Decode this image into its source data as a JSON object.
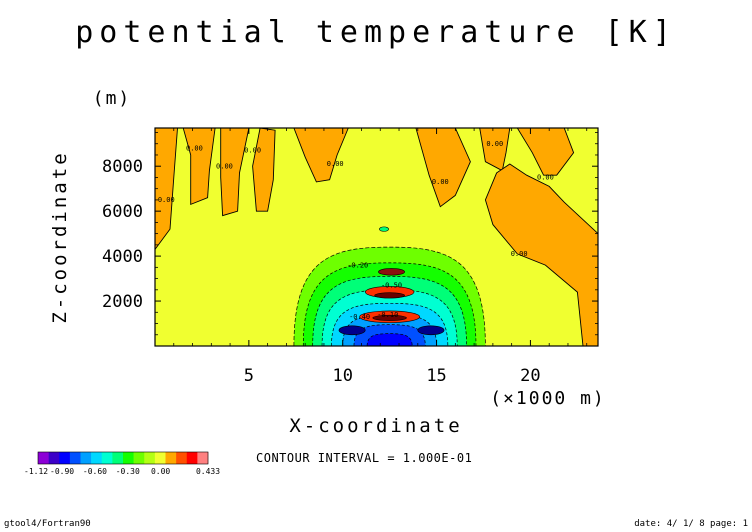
{
  "chart_data": {
    "type": "heatmap",
    "title": "potential temperature [K]",
    "xlabel": "X-coordinate",
    "ylabel": "Z-coordinate",
    "x_unit": "(×1000 m)",
    "y_unit": "(m)",
    "xlim": [
      0,
      23.6
    ],
    "ylim": [
      0,
      9700
    ],
    "xticks": [
      5,
      10,
      15,
      20
    ],
    "yticks": [
      2000,
      4000,
      6000,
      8000
    ],
    "grid": false,
    "background_level": 0.0,
    "contour_interval": "CONTOUR INTERVAL = 1.000E-01",
    "contour_labels": [
      {
        "x": 0.6,
        "z": 6400,
        "text": "0.00"
      },
      {
        "x": 2.1,
        "z": 8700,
        "text": "0.00"
      },
      {
        "x": 3.7,
        "z": 7900,
        "text": "0.00"
      },
      {
        "x": 5.2,
        "z": 8600,
        "text": "0.00"
      },
      {
        "x": 9.6,
        "z": 8000,
        "text": "0.00"
      },
      {
        "x": 15.2,
        "z": 7200,
        "text": "0.00"
      },
      {
        "x": 18.1,
        "z": 8900,
        "text": "0.00"
      },
      {
        "x": 20.8,
        "z": 7400,
        "text": "0.00"
      },
      {
        "x": 19.4,
        "z": 4000,
        "text": "0.00"
      },
      {
        "x": 10.8,
        "z": 3500,
        "text": "-0.20"
      },
      {
        "x": 12.6,
        "z": 2600,
        "text": "-0.50"
      },
      {
        "x": 12.4,
        "z": 1300,
        "text": "-0.10"
      },
      {
        "x": 10.9,
        "z": 1200,
        "text": "-0.40"
      }
    ],
    "warm_regions_value": 0.1,
    "cold_core": {
      "x_center": 12.5,
      "z_min": 0,
      "z_max": 4400,
      "min_value": -1.12
    },
    "colorbar": {
      "levels": [
        -1.12,
        -1.0,
        -0.9,
        -0.8,
        -0.7,
        -0.6,
        -0.5,
        -0.4,
        -0.3,
        -0.2,
        -0.1,
        0.0,
        0.1,
        0.2,
        0.3,
        0.4,
        0.433
      ],
      "colors": [
        "#8c00d6",
        "#3c00c8",
        "#0000ff",
        "#0050ff",
        "#00a0ff",
        "#00d8ff",
        "#00ffd2",
        "#00ff78",
        "#14ff00",
        "#6eff00",
        "#b4ff14",
        "#f0ff30",
        "#ffa800",
        "#ff5000",
        "#ff0000",
        "#ff8080"
      ],
      "tick_labels": [
        "-1.12",
        "-0.90",
        "-0.60",
        "-0.30",
        "0.00",
        "0.433"
      ]
    }
  },
  "footer": {
    "left": "gtool4/Fortran90",
    "right": "date: 4/ 1/ 8 page: 1"
  },
  "colors": {
    "background_fill": "#f0ff30",
    "warm_fill": "#ffa800",
    "frame": "#000000"
  }
}
